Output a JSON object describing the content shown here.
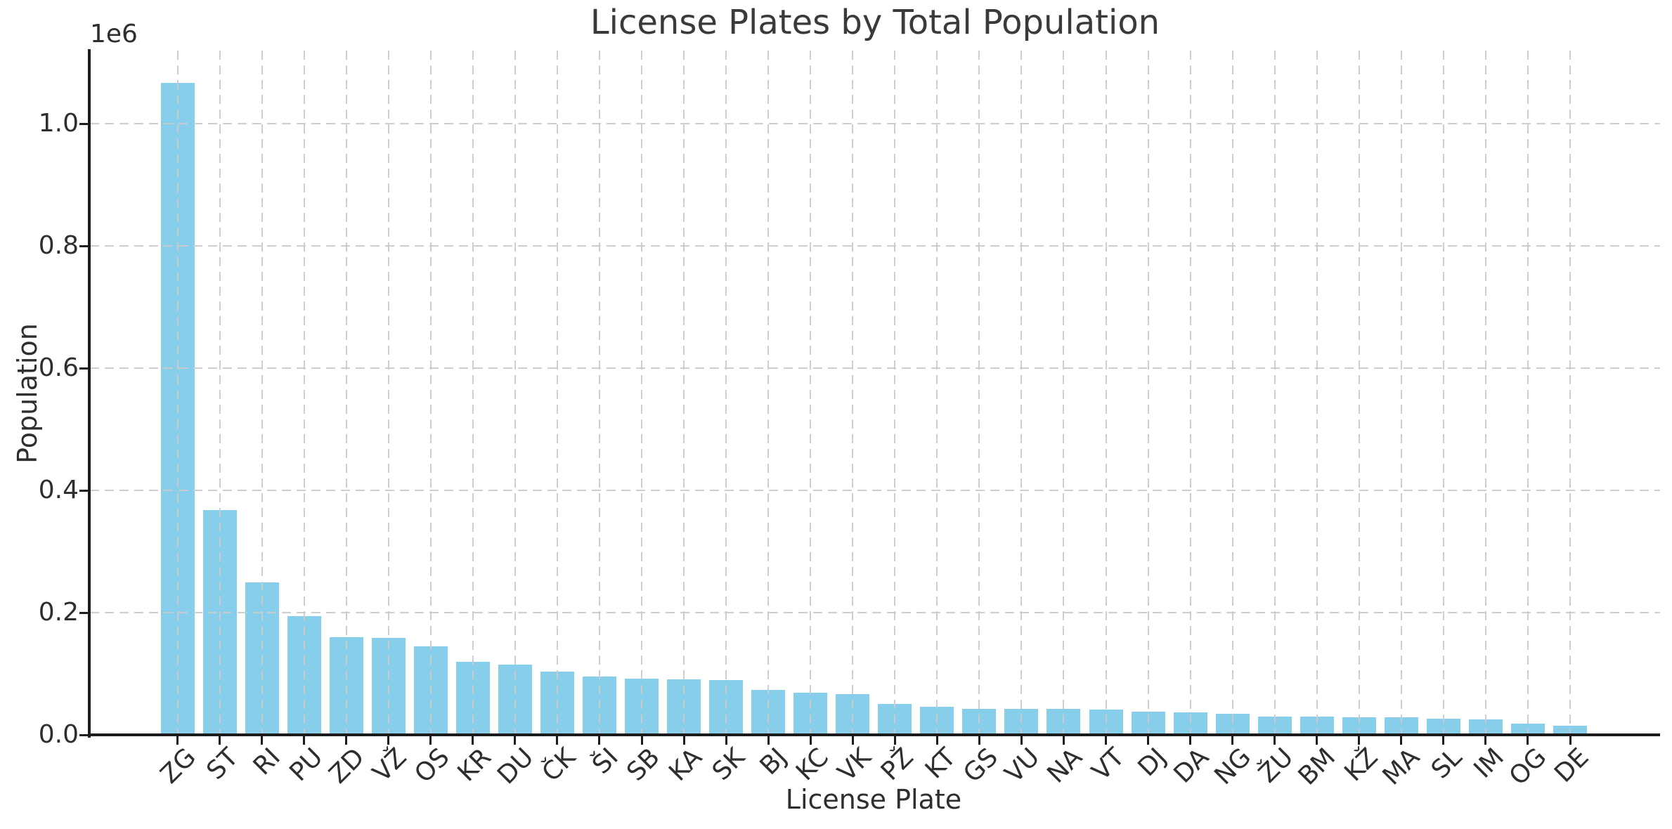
{
  "figure": {
    "background": "#ffffff"
  },
  "chart_data": {
    "type": "bar",
    "title": "License Plates by Total Population",
    "xlabel": "License Plate",
    "ylabel": "Population",
    "y_offset_label": "1e6",
    "categories": [
      "ZG",
      "ST",
      "RI",
      "PU",
      "ZD",
      "VŽ",
      "OS",
      "KR",
      "DU",
      "ČK",
      "ŠI",
      "SB",
      "KA",
      "SK",
      "BJ",
      "KC",
      "VK",
      "PŽ",
      "KT",
      "GS",
      "VU",
      "NA",
      "VT",
      "DJ",
      "DA",
      "NG",
      "ŽU",
      "BM",
      "KŽ",
      "MA",
      "SL",
      "IM",
      "OG",
      "DE"
    ],
    "values": [
      1067000,
      368000,
      249000,
      194000,
      160000,
      159000,
      145000,
      119000,
      115000,
      104000,
      95000,
      92000,
      91000,
      90000,
      74000,
      69000,
      67000,
      51000,
      46000,
      42000,
      42000,
      42000,
      41000,
      38000,
      37000,
      35000,
      30000,
      30000,
      29000,
      29000,
      27000,
      25000,
      18000,
      15000
    ],
    "yticks": [
      0,
      200000,
      400000,
      600000,
      800000,
      1000000
    ],
    "ytick_labels": [
      "0.0",
      "0.2",
      "0.4",
      "0.6",
      "0.8",
      "1.0"
    ],
    "ylim": [
      0,
      1120000
    ],
    "x_tick_rotation": 45,
    "bar_color": "#87CEEB",
    "grid": true,
    "grid_style": "dashed",
    "grid_color": "#cbcbcb",
    "axis_color": "#1c1c1c",
    "text_color": "#2e2e2e",
    "legend": null
  }
}
